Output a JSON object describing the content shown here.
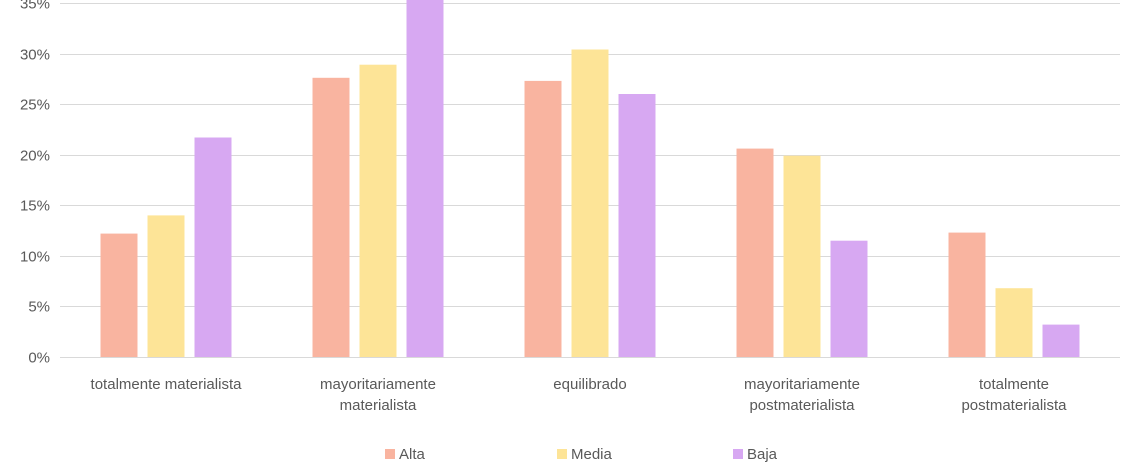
{
  "chart_data": {
    "type": "bar",
    "title": "",
    "xlabel": "",
    "ylabel": "",
    "categories": [
      [
        "totalmente materialista"
      ],
      [
        "mayoritariamente",
        "materialista"
      ],
      [
        "equilibrado"
      ],
      [
        "mayoritariamente",
        "postmaterialista"
      ],
      [
        "totalmente",
        "postmaterialista"
      ]
    ],
    "series": [
      {
        "name": "Alta",
        "color": "#F9B4A0",
        "values": [
          12.2,
          27.6,
          27.3,
          20.6,
          12.3
        ]
      },
      {
        "name": "Media",
        "color": "#FDE497",
        "values": [
          14.0,
          28.9,
          30.4,
          19.9,
          6.8
        ]
      },
      {
        "name": "Baja",
        "color": "#D7A8F2",
        "values": [
          21.7,
          37.3,
          26.0,
          11.5,
          3.2
        ]
      }
    ],
    "ylim": [
      0,
      35
    ],
    "yticks": [
      0,
      5,
      10,
      15,
      20,
      25,
      30,
      35
    ],
    "ytick_format": "{v}%",
    "grid": true,
    "gridline_color": "#D9D9D9",
    "legend_position": "bottom"
  }
}
